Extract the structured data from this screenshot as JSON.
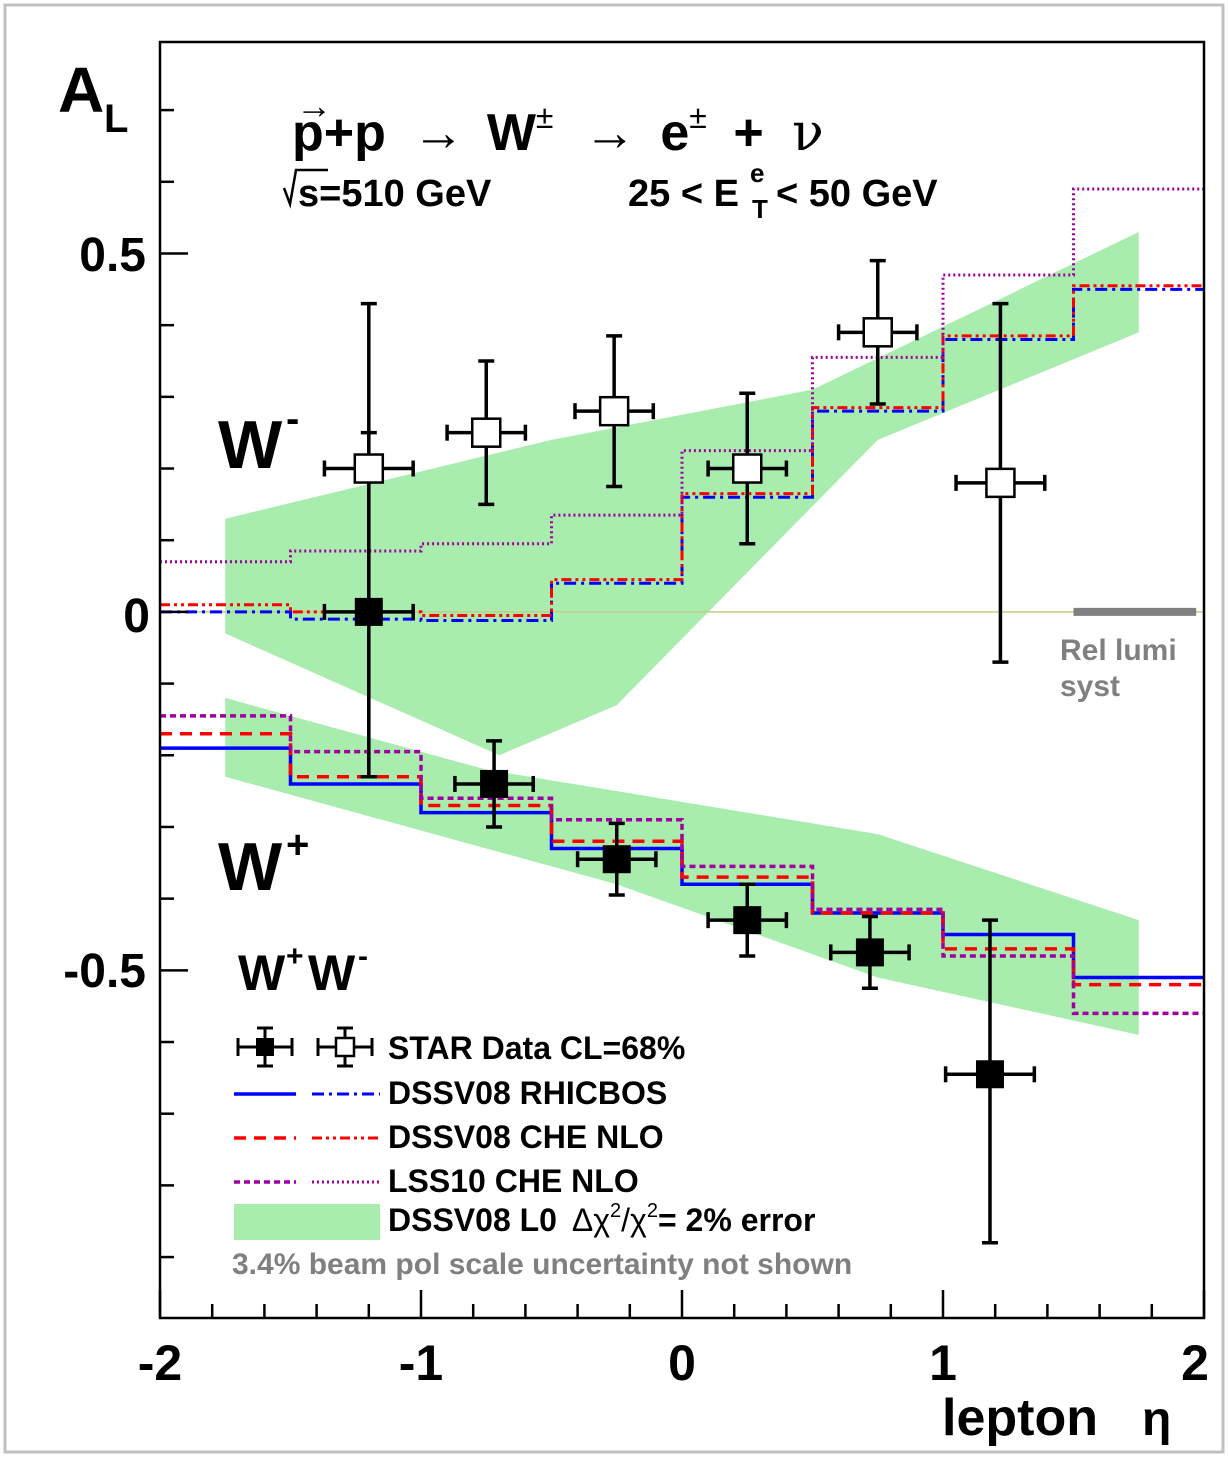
{
  "chart_data": {
    "type": "line",
    "x_axis": {
      "label": "lepton",
      "symbol": "η",
      "range": [
        -2,
        2
      ],
      "ticks": [
        "-2",
        "-1",
        "0",
        "1",
        "2"
      ]
    },
    "y_axis": {
      "label": "A",
      "label_sub": "L",
      "range": [
        -0.985,
        0.795
      ],
      "ticks": [
        "0.5",
        "0",
        "-0.5"
      ]
    },
    "title": {
      "reaction_p1": "p",
      "reaction_p2": "+p",
      "reaction_arrow1": "→",
      "reaction_w": "W",
      "reaction_w_sup": "±",
      "reaction_arrow2": "→",
      "reaction_e": "e",
      "reaction_e_sup": "±",
      "reaction_plus": "+",
      "reaction_nu": "ν",
      "sqrt_s": "s=510 GeV",
      "et_cut_left": "25 < E",
      "et_cut_sup": "e",
      "et_cut_sub": "T",
      "et_cut_right": "< 50 GeV"
    },
    "labels": {
      "w_minus": "W",
      "w_minus_sup": "-",
      "w_plus": "W",
      "w_plus_sup": "+",
      "legend_header_wplus": "W",
      "legend_header_wplus_sup": "+",
      "legend_header_wminus": "W",
      "legend_header_wminus_sup": "-",
      "rel_lumi_1": "Rel lumi",
      "rel_lumi_2": "syst"
    },
    "legend": {
      "data": "STAR Data CL=68%",
      "rhicbos": "DSSV08  RHICBOS",
      "che_nlo": "DSSV08  CHE NLO",
      "lss10": "LSS10 CHE NLO",
      "band_prefix": "DSSV08 L0",
      "band_delta": "Δχ",
      "band_sup1": "2",
      "band_slash": "/χ",
      "band_sup2": "2",
      "band_suffix": "= 2% error",
      "note": "3.4% beam pol scale uncertainty not shown"
    },
    "bin_edges": [
      -2,
      -1.5,
      -1,
      -0.5,
      0,
      0.5,
      1,
      1.5,
      2
    ],
    "theory": {
      "w_minus": [
        {
          "name": "DSSV08  RHICBOS",
          "values": [
            0.0,
            -0.01,
            -0.012,
            0.04,
            0.16,
            0.28,
            0.38,
            0.45
          ]
        },
        {
          "name": "DSSV08  CHE NLO",
          "values": [
            0.01,
            0.0,
            -0.005,
            0.045,
            0.165,
            0.285,
            0.385,
            0.455
          ]
        },
        {
          "name": "LSS10 CHE NLO",
          "values": [
            0.07,
            0.085,
            0.095,
            0.135,
            0.225,
            0.355,
            0.47,
            0.59
          ]
        }
      ],
      "w_plus": [
        {
          "name": "DSSV08  RHICBOS",
          "values": [
            -0.19,
            -0.24,
            -0.28,
            -0.33,
            -0.38,
            -0.42,
            -0.45,
            -0.51
          ]
        },
        {
          "name": "DSSV08  CHE NLO",
          "values": [
            -0.17,
            -0.23,
            -0.27,
            -0.32,
            -0.37,
            -0.42,
            -0.47,
            -0.52
          ]
        },
        {
          "name": "LSS10 CHE NLO",
          "values": [
            -0.145,
            -0.195,
            -0.26,
            -0.29,
            -0.355,
            -0.415,
            -0.48,
            -0.56
          ]
        }
      ]
    },
    "bands": {
      "w_minus": {
        "upper": [
          [
            -1.75,
            0.13
          ],
          [
            -0.5,
            0.24
          ],
          [
            0.5,
            0.31
          ],
          [
            1.75,
            0.53
          ]
        ],
        "lower": [
          [
            -1.75,
            -0.03
          ],
          [
            -0.7,
            -0.2
          ],
          [
            -0.25,
            -0.13
          ],
          [
            0.75,
            0.24
          ],
          [
            1.75,
            0.39
          ]
        ]
      },
      "w_plus": {
        "upper": [
          [
            -1.75,
            -0.12
          ],
          [
            -0.75,
            -0.22
          ],
          [
            0.75,
            -0.31
          ],
          [
            1.75,
            -0.43
          ]
        ],
        "lower": [
          [
            -1.75,
            -0.23
          ],
          [
            -0.25,
            -0.38
          ],
          [
            0.75,
            -0.51
          ],
          [
            1.75,
            -0.59
          ]
        ]
      }
    },
    "data_points": {
      "w_minus": [
        {
          "x": -1.2,
          "y": 0.2,
          "xerr": 0.17,
          "ylo": -0.23,
          "yhi": 0.43
        },
        {
          "x": -0.75,
          "y": 0.25,
          "xerr": 0.15,
          "ylo": 0.15,
          "yhi": 0.35
        },
        {
          "x": -0.26,
          "y": 0.28,
          "xerr": 0.15,
          "ylo": 0.175,
          "yhi": 0.385
        },
        {
          "x": 0.25,
          "y": 0.2,
          "xerr": 0.15,
          "ylo": 0.095,
          "yhi": 0.305
        },
        {
          "x": 0.75,
          "y": 0.39,
          "xerr": 0.15,
          "ylo": 0.29,
          "yhi": 0.49
        },
        {
          "x": 1.22,
          "y": 0.18,
          "xerr": 0.17,
          "ylo": -0.07,
          "yhi": 0.43
        }
      ],
      "w_plus": [
        {
          "x": -1.2,
          "y": 0.0,
          "xerr": 0.17,
          "ylo": -0.23,
          "yhi": 0.25
        },
        {
          "x": -0.72,
          "y": -0.24,
          "xerr": 0.15,
          "ylo": -0.3,
          "yhi": -0.18
        },
        {
          "x": -0.25,
          "y": -0.345,
          "xerr": 0.15,
          "ylo": -0.395,
          "yhi": -0.295
        },
        {
          "x": 0.25,
          "y": -0.43,
          "xerr": 0.15,
          "ylo": -0.48,
          "yhi": -0.38
        },
        {
          "x": 0.72,
          "y": -0.475,
          "xerr": 0.15,
          "ylo": -0.525,
          "yhi": -0.425
        },
        {
          "x": 1.18,
          "y": -0.645,
          "xerr": 0.17,
          "ylo": -0.88,
          "yhi": -0.43
        }
      ]
    },
    "rel_lumi_bar": {
      "x_from": 1.5,
      "x_to": 1.97,
      "y": 0.0
    },
    "zero_line": 0,
    "colors": {
      "band": "#a8ecae",
      "rhicbos": "#0000ff",
      "che_nlo": "#ff0000",
      "lss10": "#a000a0",
      "zero_line": "#c8cc88",
      "rel_lumi": "#808080",
      "frame_border": "#c0c0c0"
    }
  }
}
